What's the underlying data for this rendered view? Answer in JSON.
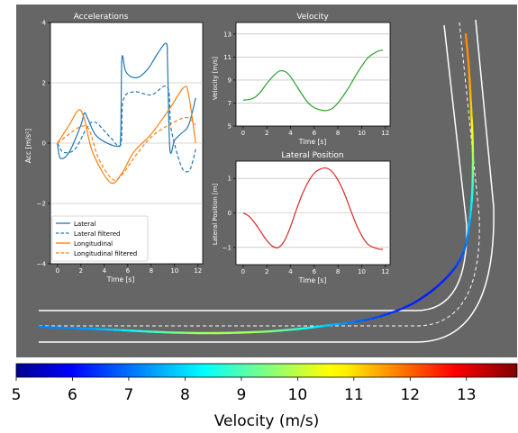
{
  "colors": {
    "background": "#666666",
    "lateral": "#1f77b4",
    "longitudinal": "#ff7f0e",
    "velocity": "#2ca02c",
    "position": "#d62728",
    "road": "#ffffff"
  },
  "chart_data": [
    {
      "type": "line",
      "title": "Accelerations",
      "xlabel": "Time [s]",
      "ylabel": "Acc [m/s²]",
      "xlim": [
        -0.6,
        12.4
      ],
      "ylim": [
        -4,
        4
      ],
      "xticks": [
        "0",
        "2",
        "4",
        "6",
        "8",
        "10",
        "12"
      ],
      "yticks": [
        "−4",
        "−2",
        "0",
        "2",
        "4"
      ],
      "grid": true,
      "legend": "lower-left",
      "series": [
        {
          "name": "Lateral",
          "style": "solid",
          "color": "#1f77b4",
          "x": [
            0,
            0.25,
            1,
            2,
            2.3,
            2.6,
            3.2,
            4,
            5.2,
            5.4,
            5.5,
            5.8,
            6.3,
            7,
            7.8,
            8.6,
            9.3,
            9.4,
            9.6,
            10,
            10.5,
            11.2,
            11.8
          ],
          "y": [
            0,
            -0.5,
            -0.3,
            0.6,
            1.0,
            0.8,
            0.3,
            0.05,
            -0.1,
            0.3,
            2.8,
            2.4,
            2.2,
            2.2,
            2.5,
            3.0,
            3.3,
            2.6,
            -0.2,
            0.1,
            0.3,
            0.6,
            1.5
          ]
        },
        {
          "name": "Lateral filtered",
          "style": "dashed",
          "color": "#1f77b4",
          "x": [
            0,
            0.5,
            1.5,
            2.5,
            3.2,
            4.5,
            5.4,
            5.6,
            6.5,
            8,
            9.4,
            9.7,
            10.5,
            11,
            11.4,
            11.8
          ],
          "y": [
            0,
            -0.3,
            -0.2,
            0.5,
            0.7,
            0.2,
            -0.05,
            1.4,
            1.7,
            1.6,
            1.85,
            0.5,
            -0.7,
            -0.95,
            -0.8,
            -0.2
          ]
        },
        {
          "name": "Longitudinal",
          "style": "solid",
          "color": "#ff7f0e",
          "x": [
            0,
            1,
            1.8,
            2.3,
            3,
            4.5,
            5.5,
            6.5,
            8,
            9.5,
            10.8,
            11.2,
            11.8
          ],
          "y": [
            0,
            0.6,
            1.1,
            0.8,
            -0.3,
            -1.3,
            -1.0,
            -0.3,
            0.3,
            1.1,
            1.85,
            1.6,
            0.0
          ]
        },
        {
          "name": "Longitudinal filtered",
          "style": "dashed",
          "color": "#ff7f0e",
          "x": [
            0,
            1,
            2,
            2.7,
            3.5,
            4.7,
            5.5,
            6.7,
            8,
            9.5,
            11,
            11.8
          ],
          "y": [
            0,
            0.3,
            0.55,
            0.45,
            -0.5,
            -1.2,
            -1.05,
            -0.4,
            0.2,
            0.6,
            0.85,
            0.6
          ]
        }
      ]
    },
    {
      "type": "line",
      "title": "Velocity",
      "xlabel": "Time [s]",
      "ylabel": "Velocity [m/s]",
      "xlim": [
        -0.6,
        12.4
      ],
      "ylim": [
        5,
        14
      ],
      "xticks": [
        "0",
        "2",
        "4",
        "6",
        "8",
        "10",
        "12"
      ],
      "yticks": [
        "5",
        "7",
        "9",
        "11",
        "13"
      ],
      "grid": true,
      "series": [
        {
          "name": "",
          "color": "#2ca02c",
          "x": [
            0,
            0.5,
            1,
            1.5,
            2,
            2.5,
            3,
            3.3,
            3.6,
            4,
            4.5,
            5,
            5.5,
            6,
            6.5,
            7,
            7.5,
            8,
            8.5,
            9,
            9.5,
            10,
            10.5,
            11,
            11.5,
            11.8
          ],
          "y": [
            7.25,
            7.3,
            7.5,
            8.0,
            8.7,
            9.3,
            9.75,
            9.8,
            9.7,
            9.3,
            8.5,
            7.7,
            7.0,
            6.6,
            6.4,
            6.35,
            6.5,
            7.0,
            7.7,
            8.5,
            9.4,
            10.2,
            10.9,
            11.3,
            11.55,
            11.6
          ]
        }
      ]
    },
    {
      "type": "line",
      "title": "Lateral Position",
      "xlabel": "Time [s]",
      "ylabel": "Lateral Position [m]",
      "xlim": [
        -0.6,
        12.4
      ],
      "ylim": [
        -1.5,
        1.5
      ],
      "xticks": [
        "0",
        "2",
        "4",
        "6",
        "8",
        "10",
        "12"
      ],
      "yticks": [
        "−1",
        "0",
        "1"
      ],
      "grid": true,
      "series": [
        {
          "name": "",
          "color": "#d62728",
          "x": [
            0,
            0.5,
            1,
            1.5,
            2,
            2.5,
            3,
            3.5,
            4,
            4.5,
            5,
            5.5,
            6,
            6.5,
            7,
            7.5,
            8,
            8.5,
            9,
            9.5,
            10,
            10.5,
            11,
            11.5,
            11.8
          ],
          "y": [
            0,
            -0.1,
            -0.3,
            -0.55,
            -0.8,
            -0.97,
            -1.0,
            -0.8,
            -0.4,
            0.1,
            0.55,
            0.9,
            1.15,
            1.27,
            1.3,
            1.2,
            0.95,
            0.6,
            0.15,
            -0.3,
            -0.65,
            -0.9,
            -1.0,
            -1.05,
            -1.05
          ]
        }
      ]
    },
    {
      "type": "heatmap",
      "role": "colorbar",
      "label": "Velocity (m/s)",
      "range": [
        5,
        13.9
      ],
      "ticks": [
        "5",
        "6",
        "7",
        "8",
        "9",
        "10",
        "11",
        "12",
        "13"
      ],
      "colormap": "jet"
    }
  ]
}
